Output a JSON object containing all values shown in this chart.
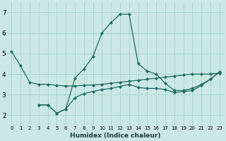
{
  "xlabel": "Humidex (Indice chaleur)",
  "bg_color": "#cce8e4",
  "grid_color": "#aad4ce",
  "line_color": "#1a6b60",
  "ylim": [
    1.5,
    7.5
  ],
  "xlim": [
    -0.5,
    23.5
  ],
  "yticks": [
    2,
    3,
    4,
    5,
    6,
    7
  ],
  "xticks": [
    0,
    1,
    2,
    3,
    4,
    5,
    6,
    7,
    8,
    9,
    10,
    11,
    12,
    13,
    14,
    15,
    16,
    17,
    18,
    19,
    20,
    21,
    22,
    23
  ],
  "series": [
    {
      "x": [
        0,
        1,
        2,
        3,
        4,
        5,
        6,
        7,
        8,
        9,
        10,
        11,
        12,
        13,
        14,
        15,
        16,
        17,
        18,
        19,
        20,
        21,
        22,
        23
      ],
      "y": [
        5.1,
        4.4,
        3.6,
        3.5,
        3.5,
        3.45,
        3.42,
        3.42,
        3.45,
        3.47,
        3.5,
        3.55,
        3.6,
        3.65,
        3.7,
        3.75,
        3.8,
        3.85,
        3.9,
        3.95,
        4.0,
        4.0,
        4.0,
        4.05
      ]
    },
    {
      "x": [
        3,
        4,
        5,
        6,
        7,
        8,
        9,
        10,
        11,
        12,
        13,
        14,
        15,
        16,
        17,
        18,
        19,
        20,
        21,
        22,
        23
      ],
      "y": [
        2.5,
        2.5,
        2.1,
        2.3,
        3.8,
        4.25,
        4.85,
        6.0,
        6.5,
        6.9,
        6.9,
        4.5,
        4.15,
        4.0,
        3.55,
        3.2,
        3.2,
        3.3,
        3.5,
        3.75,
        4.1
      ]
    },
    {
      "x": [
        3,
        4,
        5,
        6,
        7,
        8,
        9,
        10,
        11,
        12,
        13,
        14,
        15,
        16,
        17,
        18,
        19,
        20,
        21,
        22,
        23
      ],
      "y": [
        2.5,
        2.5,
        2.1,
        2.3,
        2.85,
        3.05,
        3.15,
        3.25,
        3.3,
        3.4,
        3.5,
        3.35,
        3.3,
        3.3,
        3.25,
        3.1,
        3.15,
        3.2,
        3.45,
        3.75,
        4.1
      ]
    }
  ]
}
